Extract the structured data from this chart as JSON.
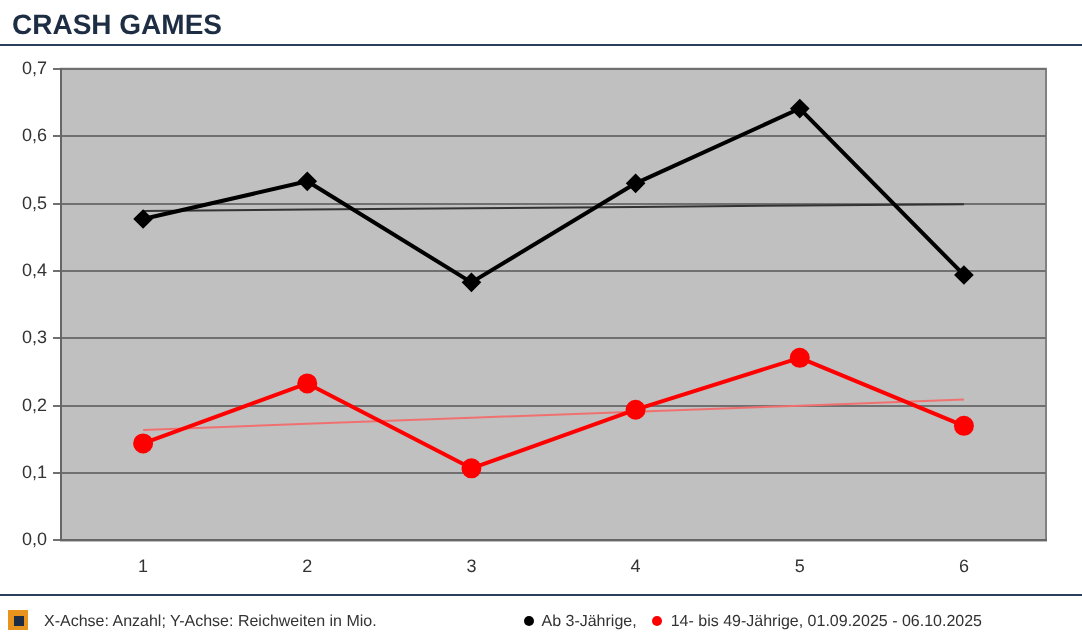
{
  "chart_data": {
    "type": "line",
    "title": "CRASH GAMES",
    "categories": [
      "1",
      "2",
      "3",
      "4",
      "5",
      "6"
    ],
    "series": [
      {
        "name": "Ab 3-Jährige,",
        "color": "#000000",
        "marker": "diamond",
        "values": [
          0.477,
          0.533,
          0.383,
          0.53,
          0.641,
          0.394
        ]
      },
      {
        "name": "14- bis 49-Jährige, 01.09.2025 - 06.10.2025",
        "color": "#ff0000",
        "marker": "circle",
        "values": [
          0.144,
          0.233,
          0.107,
          0.194,
          0.271,
          0.17
        ]
      },
      {
        "type": "line",
        "color": "#333333",
        "marker": "none",
        "values": [
          0.489,
          0.491,
          0.493,
          0.495,
          0.497,
          0.499
        ]
      },
      {
        "type": "line",
        "color": "#f07070",
        "marker": "none",
        "values": [
          0.164,
          0.173,
          0.182,
          0.191,
          0.2,
          0.209
        ]
      }
    ],
    "ylim": [
      0,
      0.7
    ],
    "yticks": [
      {
        "value": 0,
        "label": "0,0"
      },
      {
        "value": 0.1,
        "label": "0,1"
      },
      {
        "value": 0.2,
        "label": "0,2"
      },
      {
        "value": 0.3,
        "label": "0,3"
      },
      {
        "value": 0.4,
        "label": "0,4"
      },
      {
        "value": 0.5,
        "label": "0,5"
      },
      {
        "value": 0.6,
        "label": "0,6"
      },
      {
        "value": 0.7,
        "label": "0,7"
      }
    ],
    "grid": "y",
    "legend": "bottom",
    "annotations": [
      "X-Achse: Anzahl; Y-Achse: Reichweiten in Mio."
    ]
  }
}
